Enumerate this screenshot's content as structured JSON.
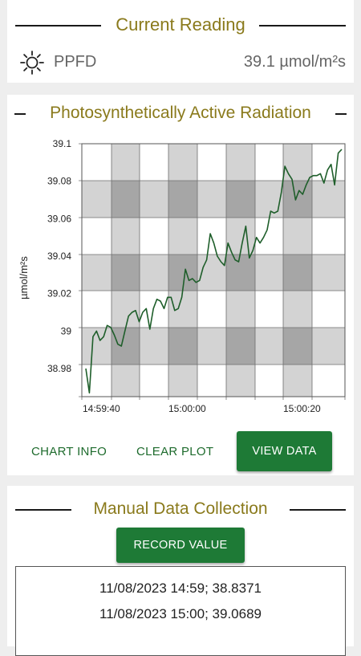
{
  "current_reading": {
    "title": "Current Reading",
    "label": "PPFD",
    "value": "39.1 µmol/m²s",
    "icon": "sun-icon"
  },
  "chart_section": {
    "title": "Photosynthetically Active Radiation",
    "buttons": {
      "chart_info": "CHART INFO",
      "clear_plot": "CLEAR PLOT",
      "view_data": "VIEW DATA"
    }
  },
  "chart_data": {
    "type": "line",
    "xlabel": "",
    "ylabel": "µmol/m²s",
    "ylim": [
      38.965,
      39.1
    ],
    "yticks": [
      38.98,
      39,
      39.02,
      39.04,
      39.06,
      39.08,
      39.1
    ],
    "ytick_labels": [
      "38.98",
      "39",
      "39.02",
      "39.04",
      "39.06",
      "39.08",
      "39.1"
    ],
    "xtick_labels": [
      "14:59:40",
      "15:00:00",
      "15:00:20"
    ],
    "grid": true,
    "line_color": "#1e5e2a",
    "series": [
      {
        "name": "",
        "values": [
          38.98,
          38.967,
          38.997,
          39.0,
          38.995,
          38.997,
          39.003,
          39.002,
          38.998,
          38.993,
          38.992,
          39.0,
          39.008,
          39.01,
          39.011,
          39.005,
          39.01,
          39.012,
          39.001,
          39.012,
          39.017,
          39.016,
          39.012,
          39.018,
          39.018,
          39.011,
          39.012,
          39.018,
          39.033,
          39.027,
          39.028,
          39.026,
          39.027,
          39.034,
          39.038,
          39.052,
          39.047,
          39.04,
          39.037,
          39.035,
          39.047,
          39.042,
          39.038,
          39.037,
          39.047,
          39.056,
          39.039,
          39.043,
          39.05,
          39.047,
          39.05,
          39.054,
          39.064,
          39.063,
          39.064,
          39.074,
          39.088,
          39.084,
          39.081,
          39.07,
          39.075,
          39.073,
          39.078,
          39.082,
          39.083,
          39.083,
          39.084,
          39.079,
          39.086,
          39.089,
          39.078,
          39.095,
          39.097
        ]
      }
    ]
  },
  "manual_section": {
    "title": "Manual Data Collection",
    "record_button": "RECORD VALUE",
    "records": [
      "11/08/2023 14:59; 38.8371",
      "11/08/2023 15:00; 39.0689"
    ]
  }
}
